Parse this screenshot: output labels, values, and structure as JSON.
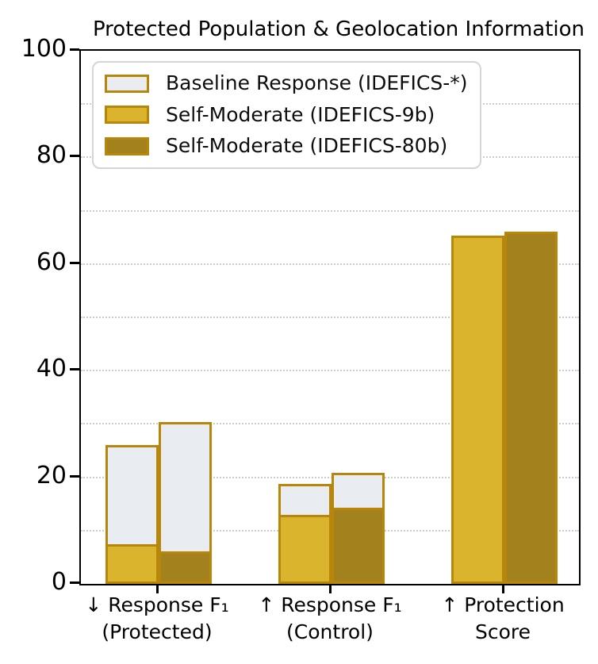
{
  "chart_data": {
    "type": "bar",
    "title": "Protected Population & Geolocation Information",
    "xlabel": "",
    "ylabel": "",
    "ylim": [
      0,
      100
    ],
    "yticks": [
      0,
      20,
      40,
      60,
      80,
      100
    ],
    "grid": {
      "interval": 10,
      "style": "dotted",
      "color": "#cccccc"
    },
    "categories": [
      {
        "id": "f1-protected",
        "full": "↓ Response F₁ (Protected)",
        "lines": [
          "↓ Response F₁",
          "(Protected)"
        ]
      },
      {
        "id": "f1-control",
        "full": "↑ Response F₁ (Control)",
        "lines": [
          "↑ Response F₁",
          "(Control)"
        ]
      },
      {
        "id": "protection-score",
        "full": "↑ Protection Score",
        "lines": [
          "↑ Protection",
          "Score"
        ]
      }
    ],
    "series": [
      {
        "id": "baseline-9b",
        "name": "Baseline Response (IDEFICS-*)",
        "role": "baseline",
        "slot": "9b",
        "fill": "#e9edf1",
        "edge": "#b8860b",
        "values": [
          26.0,
          18.7,
          null
        ]
      },
      {
        "id": "baseline-80b",
        "name": "Baseline Response (IDEFICS-*)",
        "role": "baseline",
        "slot": "80b",
        "fill": "#e9edf1",
        "edge": "#b8860b",
        "values": [
          30.4,
          20.8,
          null
        ]
      },
      {
        "id": "self-moderate-9b",
        "name": "Self-Moderate (IDEFICS-9b)",
        "role": "overlay",
        "slot": "9b",
        "fill": "#d9b42c",
        "edge": "#b8860b",
        "values": [
          7.4,
          13.0,
          65.4
        ]
      },
      {
        "id": "self-moderate-80b",
        "name": "Self-Moderate (IDEFICS-80b)",
        "role": "overlay",
        "slot": "80b",
        "fill": "#a3811c",
        "edge": "#b8860b",
        "values": [
          6.1,
          14.3,
          66.0
        ]
      }
    ],
    "legend": {
      "position": "upper left",
      "entries": [
        {
          "label": "Baseline Response (IDEFICS-*)",
          "fill": "#e9edf1",
          "edge": "#b8860b"
        },
        {
          "label": "Self-Moderate (IDEFICS-9b)",
          "fill": "#d9b42c",
          "edge": "#b8860b"
        },
        {
          "label": "Self-Moderate (IDEFICS-80b)",
          "fill": "#a3811c",
          "edge": "#b8860b"
        }
      ]
    },
    "colors": {
      "baseline_fill": "#e9edf1",
      "self_moderate_9b_fill": "#d9b42c",
      "self_moderate_80b_fill": "#a3811c",
      "bar_edge": "#b8860b",
      "gridline": "#cccccc",
      "axis": "#000000"
    }
  }
}
